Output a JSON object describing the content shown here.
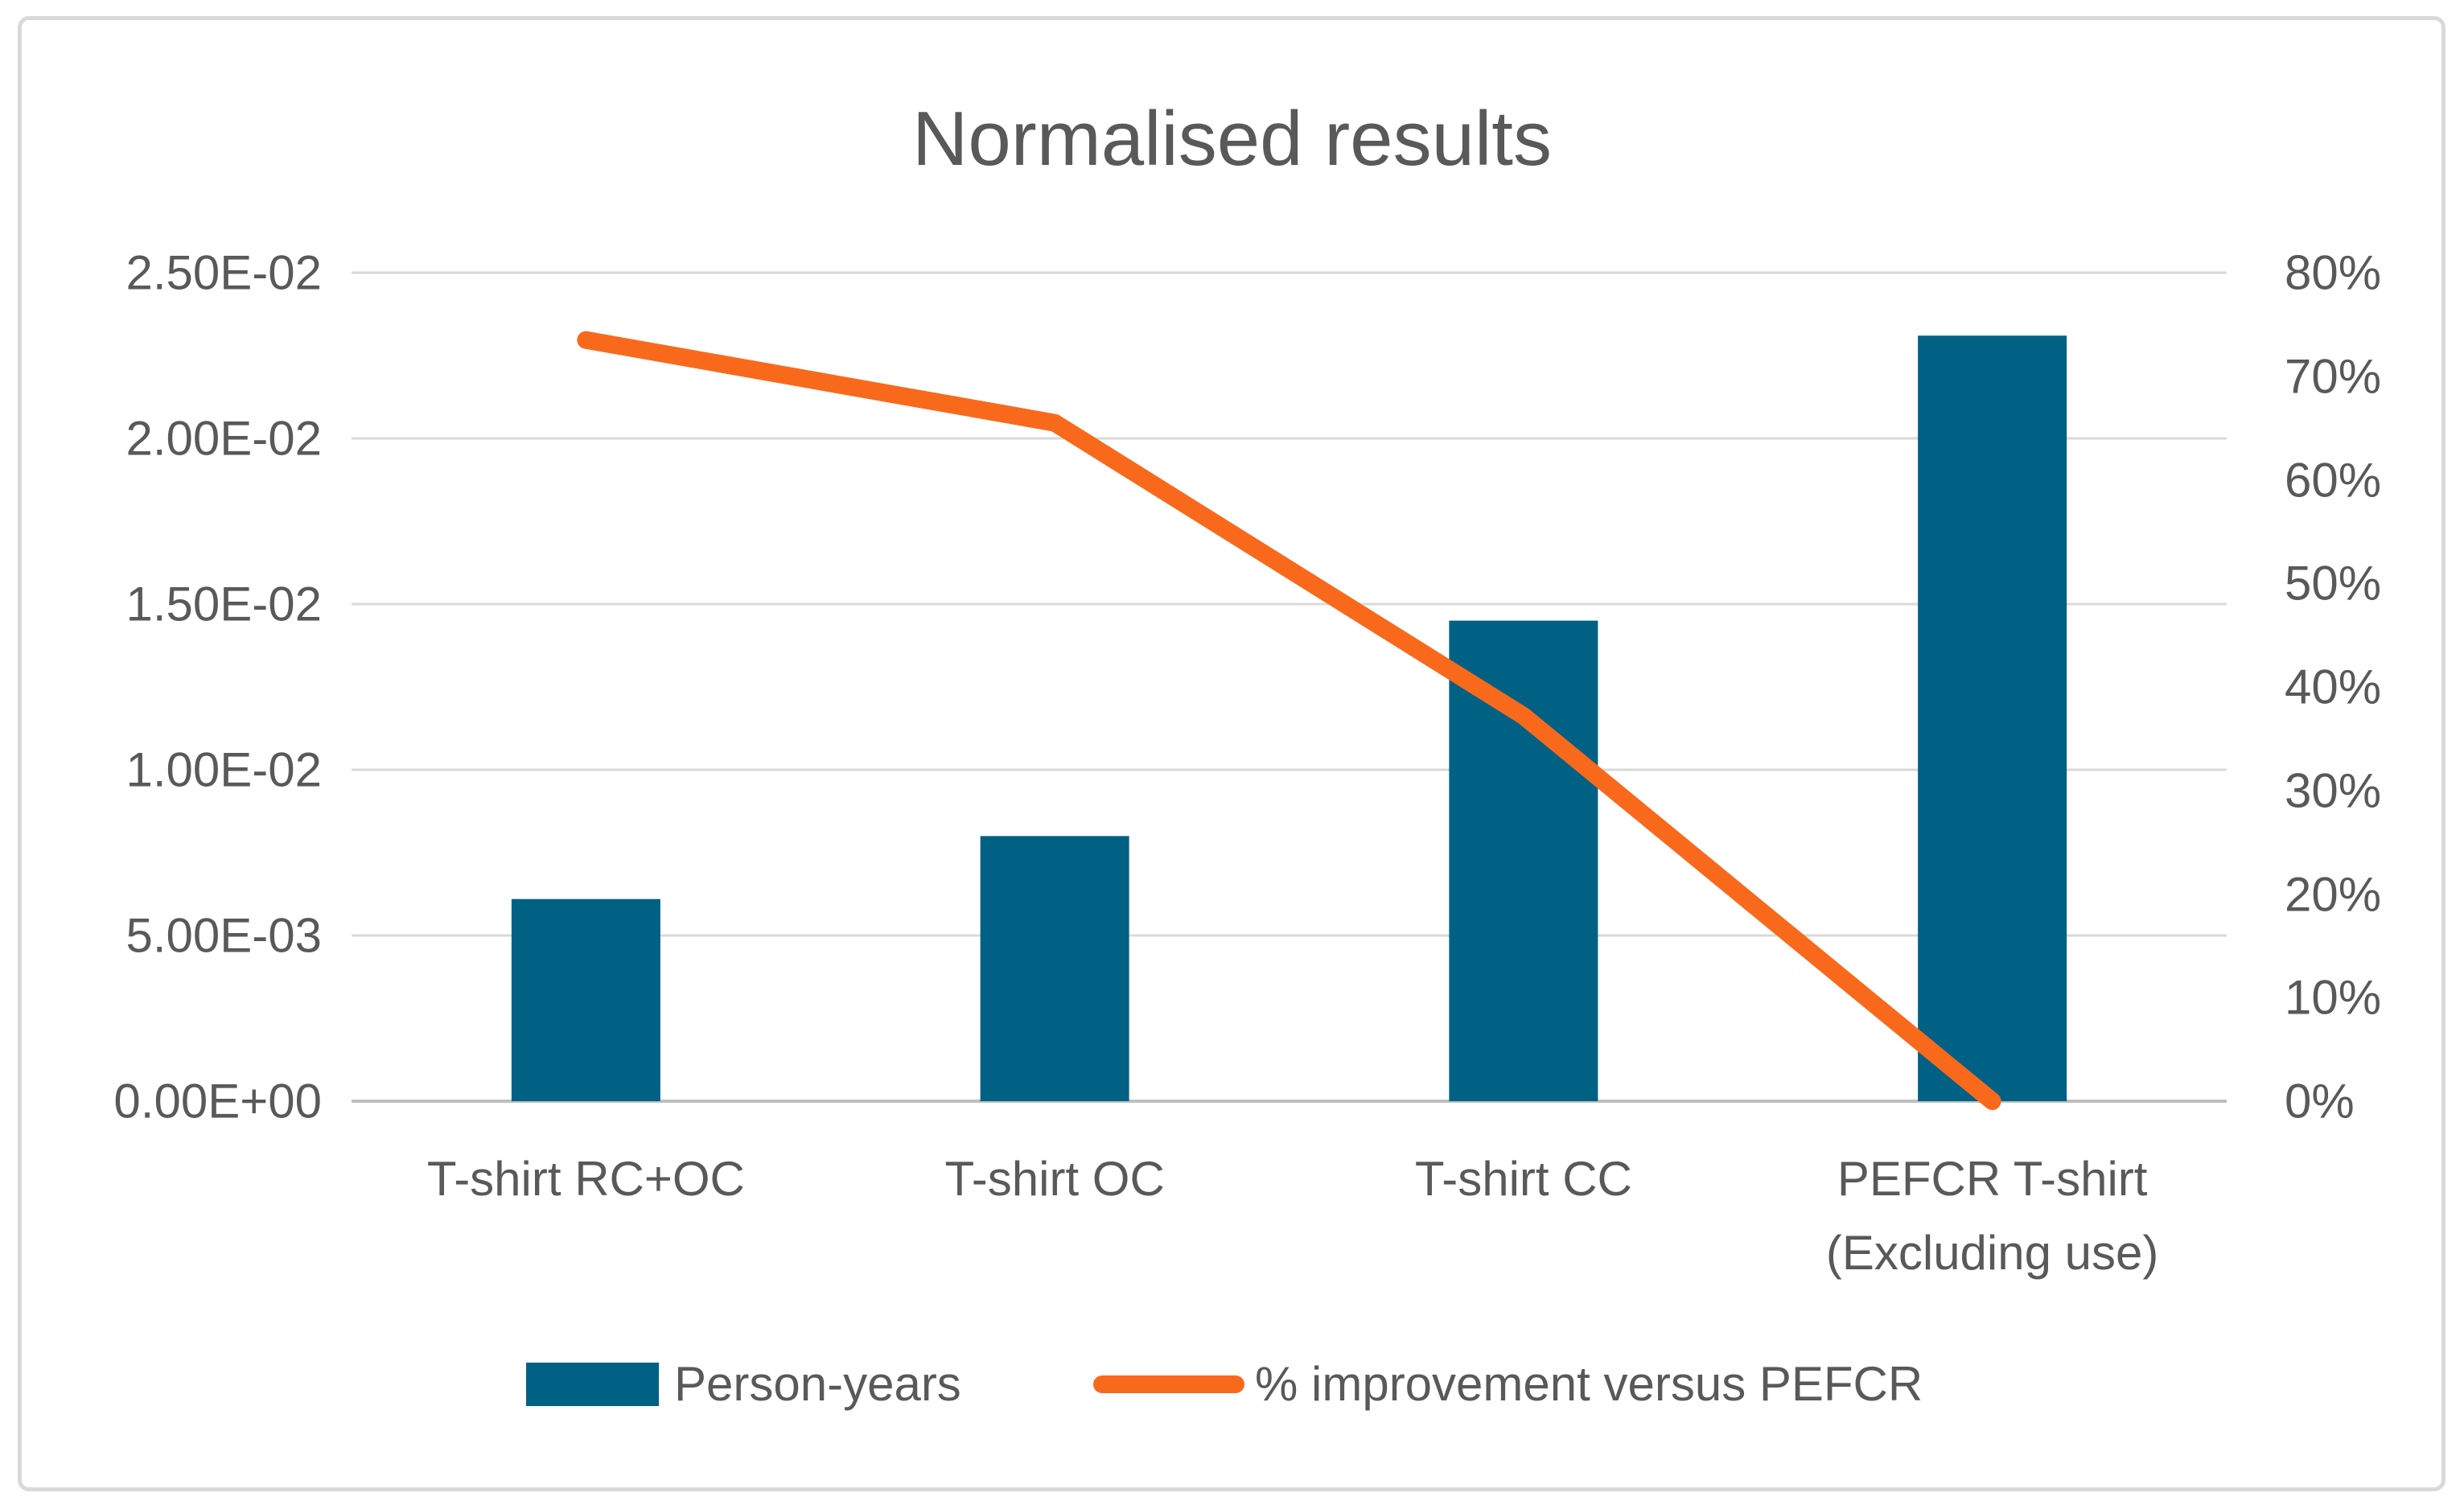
{
  "title": "Normalised results",
  "colors": {
    "bar": "#006184",
    "line": "#F9691C",
    "gridline": "#D9D9D9",
    "axis_line": "#BFBFBF",
    "text": "#595959",
    "frame_border": "#D9D9D9"
  },
  "legend": {
    "bar_label": "Person-years",
    "line_label": "% improvement versus PEFCR"
  },
  "chart_data": {
    "type": "combo-bar-line",
    "title": "Normalised results",
    "categories": [
      "T-shirt RC+OC",
      "T-shirt OC",
      "T-shirt CC",
      "PEFCR T-shirt (Excluding use)"
    ],
    "category_lines": [
      [
        "T-shirt RC+OC"
      ],
      [
        "T-shirt OC"
      ],
      [
        "T-shirt CC"
      ],
      [
        "PEFCR T-shirt",
        "(Excluding use)"
      ]
    ],
    "series": [
      {
        "name": "Person-years",
        "type": "bar",
        "axis": "left",
        "color": "#006184",
        "values": [
          0.0061,
          0.008,
          0.0145,
          0.0231
        ]
      },
      {
        "name": "% improvement versus PEFCR",
        "type": "line",
        "axis": "right",
        "color": "#F9691C",
        "values_pct": [
          73.5,
          65.5,
          37.2,
          0
        ]
      }
    ],
    "left_axis": {
      "min": 0,
      "max": 0.025,
      "tick_step": 0.005,
      "ticks_top_to_bottom": [
        "2.50E-02",
        "2.00E-02",
        "1.50E-02",
        "1.00E-02",
        "5.00E-03",
        "0.00E+00"
      ]
    },
    "right_axis": {
      "min_pct": 0,
      "max_pct": 80,
      "tick_step_pct": 10,
      "ticks_top_to_bottom": [
        "80%",
        "70%",
        "60%",
        "50%",
        "40%",
        "30%",
        "20%",
        "10%",
        "0%"
      ]
    },
    "grid": true,
    "legend_position": "bottom"
  }
}
